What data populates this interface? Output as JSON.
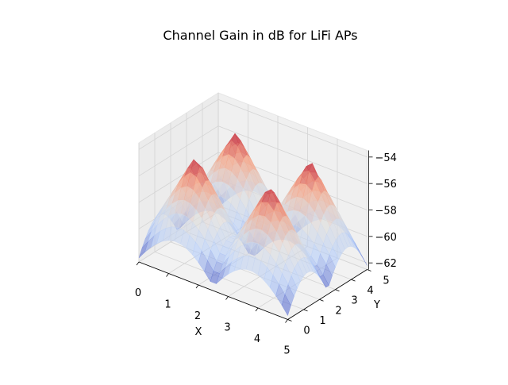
{
  "chart_data": {
    "type": "surface",
    "title": "Channel Gain in dB for LiFi APs",
    "xlabel": "X",
    "ylabel": "Y",
    "zlabel": "",
    "xlim": [
      0,
      5
    ],
    "ylim": [
      0,
      5
    ],
    "zlim": [
      -62.5,
      -53.5
    ],
    "x_ticks": [
      "0",
      "1",
      "2",
      "3",
      "4",
      "5"
    ],
    "y_ticks": [
      "0",
      "1",
      "2",
      "3",
      "4",
      "5"
    ],
    "z_ticks": [
      "−54",
      "−56",
      "−58",
      "−60",
      "−62"
    ],
    "z_tick_values": [
      -54,
      -56,
      -58,
      -60,
      -62
    ],
    "access_points": [
      {
        "x": 1.25,
        "y": 1.25
      },
      {
        "x": 1.25,
        "y": 3.75
      },
      {
        "x": 3.75,
        "y": 1.25
      },
      {
        "x": 3.75,
        "y": 3.75
      }
    ],
    "peak_gain_db": -54.3,
    "min_gain_db": -62.2,
    "colormap": "coolwarm",
    "colormap_stops": [
      "#3b4cc0",
      "#b4cdfa",
      "#dddddd",
      "#f6a283",
      "#b40426"
    ],
    "grid": true
  }
}
